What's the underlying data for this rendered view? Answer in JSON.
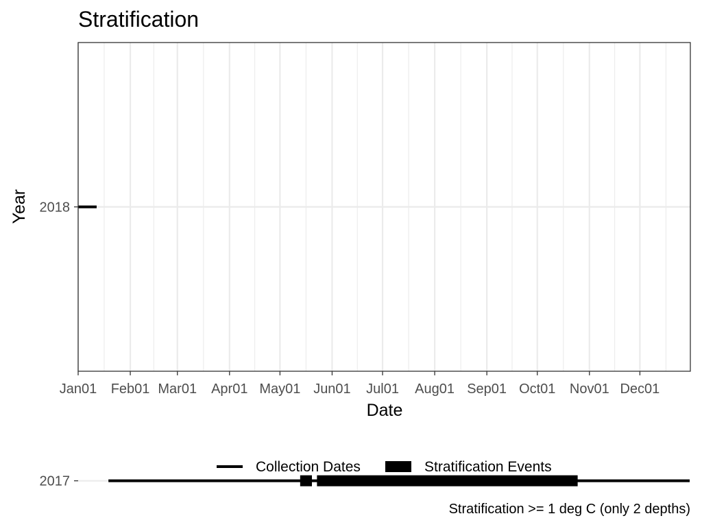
{
  "chart_data": {
    "type": "timeline",
    "title": "Stratification",
    "xlabel": "Date",
    "ylabel": "Year",
    "caption": "Stratification >= 1 deg C (only 2 depths)",
    "x_ticks": [
      "Jan01",
      "Feb01",
      "Mar01",
      "Apr01",
      "May01",
      "Jun01",
      "Jul01",
      "Aug01",
      "Sep01",
      "Oct01",
      "Nov01",
      "Dec01"
    ],
    "xlim": [
      "Jan01",
      "Dec31"
    ],
    "y_categories": [
      "2017",
      "2018"
    ],
    "grid": true,
    "legend_position": "bottom",
    "series": [
      {
        "name": "Collection Dates",
        "style": "line",
        "color": "#000000",
        "segments": [
          {
            "year": "2018",
            "start": "Jan01",
            "end": "Jan11"
          },
          {
            "year": "2017",
            "start": "Jan19",
            "end": "Dec31"
          }
        ]
      },
      {
        "name": "Stratification Events",
        "style": "thick",
        "color": "#000000",
        "segments": [
          {
            "year": "2017",
            "start": "May13",
            "end": "May19"
          },
          {
            "year": "2017",
            "start": "May23",
            "end": "Oct24"
          }
        ]
      }
    ]
  }
}
